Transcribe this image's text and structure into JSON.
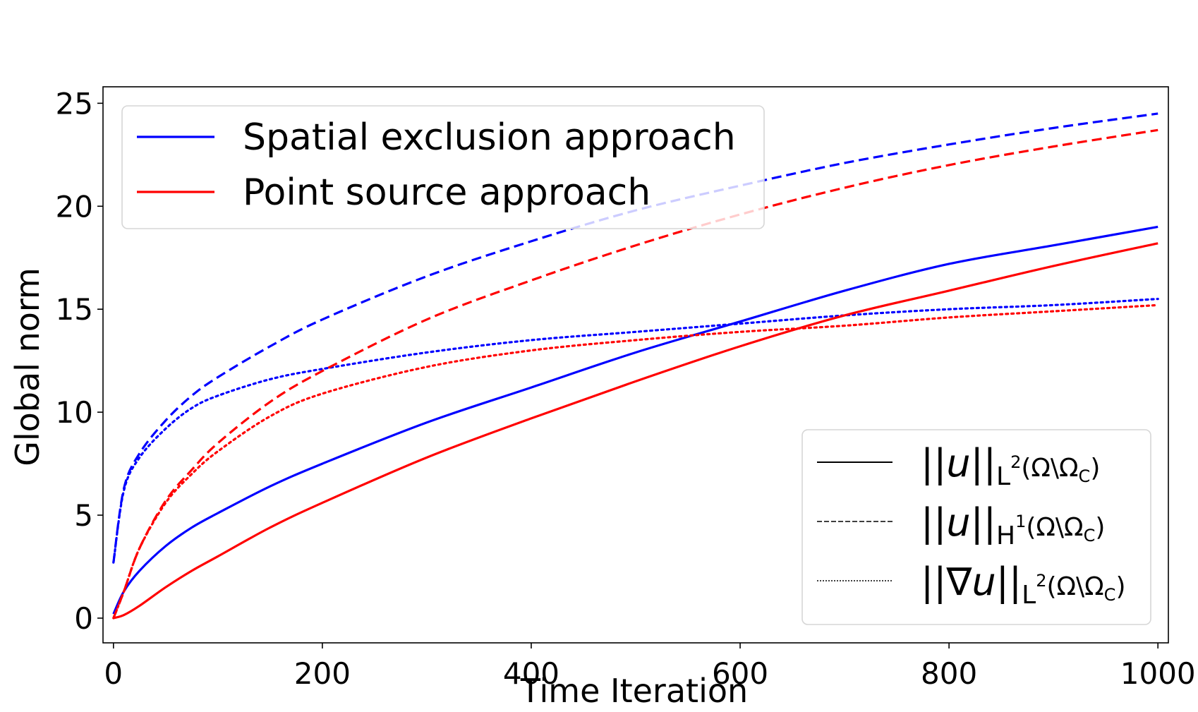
{
  "chart_data": {
    "type": "line",
    "xlabel": "Time Iteration",
    "ylabel": "Global norm",
    "xlim": [
      -10,
      1010
    ],
    "ylim": [
      -1.2,
      25.8
    ],
    "xticks": [
      0,
      200,
      400,
      600,
      800,
      1000
    ],
    "yticks": [
      0,
      5,
      10,
      15,
      20,
      25
    ],
    "grid": false,
    "colors": {
      "spatial": "#0000ff",
      "point": "#ff0000",
      "style_key": "#000000"
    },
    "approach_legend": {
      "placement": "top-left",
      "entries": [
        {
          "key": "spatial",
          "label": "Spatial exclusion approach"
        },
        {
          "key": "point",
          "label": "Point source approach"
        }
      ]
    },
    "norm_legend": {
      "placement": "bottom-right",
      "entries": [
        {
          "style": "solid",
          "label_main": "||u||",
          "label_sub_sup": "L",
          "label_sup": "2",
          "label_sub_rest": "(Ω\\Ω",
          "label_sub_C": "C",
          "label_close": ")"
        },
        {
          "style": "dashed",
          "label_main": "||u||",
          "label_sub_sup": "H",
          "label_sup": "1",
          "label_sub_rest": "(Ω\\Ω",
          "label_sub_C": "C",
          "label_close": ")"
        },
        {
          "style": "dotted",
          "label_main": "||∇u||",
          "label_sub_sup": "L",
          "label_sup": "2",
          "label_sub_rest": "(Ω\\Ω",
          "label_sub_C": "C",
          "label_close": ")"
        }
      ]
    },
    "x": [
      0,
      10,
      25,
      50,
      75,
      100,
      150,
      200,
      300,
      400,
      500,
      600,
      700,
      800,
      900,
      1000
    ],
    "series": [
      {
        "key": "spatial-l2",
        "color": "spatial",
        "style": "solid",
        "values": [
          0.2,
          1.3,
          2.3,
          3.5,
          4.4,
          5.1,
          6.4,
          7.5,
          9.5,
          11.2,
          12.9,
          14.4,
          15.9,
          17.2,
          18.1,
          19.0
        ]
      },
      {
        "key": "spatial-h1",
        "color": "spatial",
        "style": "dashed",
        "values": [
          2.7,
          6.3,
          8.0,
          9.6,
          10.8,
          11.7,
          13.2,
          14.5,
          16.6,
          18.3,
          19.8,
          21.0,
          22.1,
          23.0,
          23.8,
          24.5
        ]
      },
      {
        "key": "spatial-grad",
        "color": "spatial",
        "style": "dotted",
        "values": [
          2.7,
          6.2,
          7.8,
          9.2,
          10.2,
          10.8,
          11.6,
          12.1,
          12.9,
          13.5,
          13.9,
          14.3,
          14.7,
          15.0,
          15.2,
          15.5
        ]
      },
      {
        "key": "point-l2",
        "color": "point",
        "style": "solid",
        "values": [
          0.0,
          0.15,
          0.6,
          1.5,
          2.3,
          3.0,
          4.4,
          5.6,
          7.8,
          9.7,
          11.5,
          13.2,
          14.7,
          15.9,
          17.1,
          18.2
        ]
      },
      {
        "key": "point-h1",
        "color": "point",
        "style": "dashed",
        "values": [
          0.0,
          1.3,
          3.4,
          5.7,
          7.2,
          8.5,
          10.5,
          12.0,
          14.5,
          16.4,
          18.1,
          19.6,
          20.9,
          22.0,
          22.9,
          23.7
        ]
      },
      {
        "key": "point-grad",
        "color": "point",
        "style": "dotted",
        "values": [
          0.0,
          1.3,
          3.4,
          5.6,
          7.0,
          8.1,
          9.8,
          10.9,
          12.2,
          13.0,
          13.5,
          13.9,
          14.2,
          14.6,
          14.9,
          15.2
        ]
      }
    ]
  }
}
